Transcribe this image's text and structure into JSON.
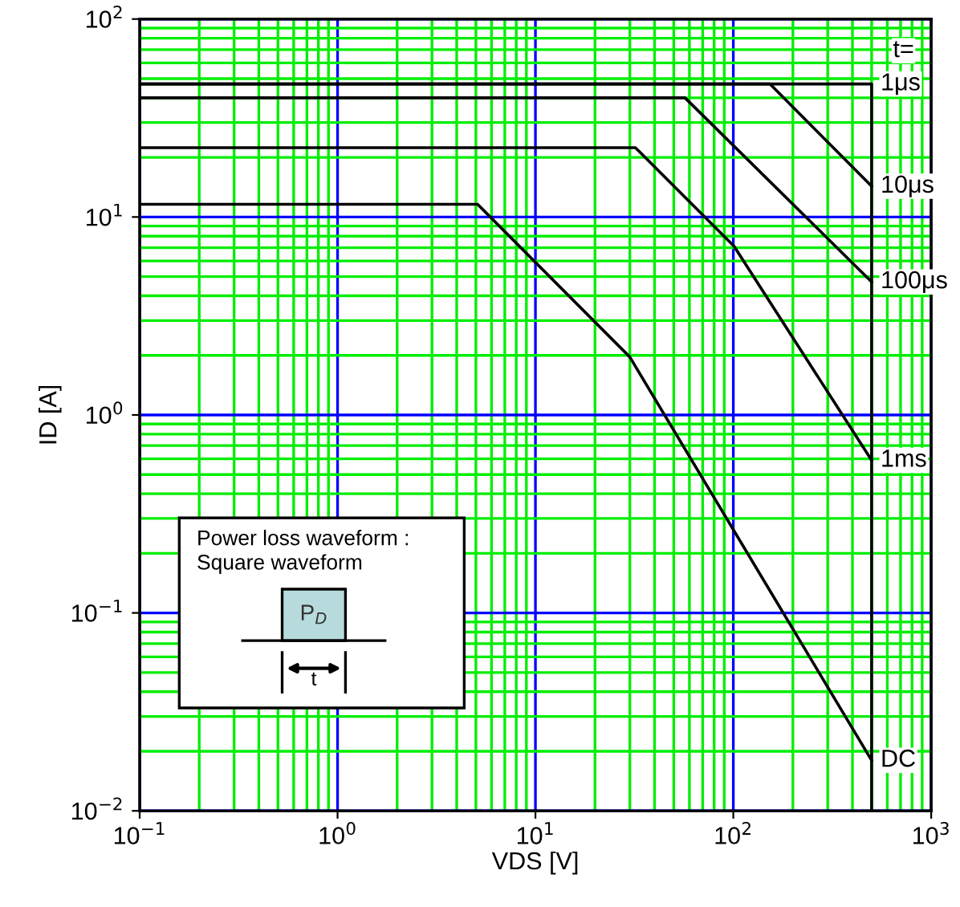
{
  "chart_data": {
    "type": "line",
    "xlabel": "VDS [V]",
    "ylabel": "ID [A]",
    "log": "xy",
    "grid": true,
    "marker": "none",
    "line_style": "solid",
    "xlim": [
      0.1,
      1000
    ],
    "ylim": [
      0.01,
      100
    ],
    "xticks": [
      {
        "value": 0.1,
        "label": "10$^{−1}$"
      },
      {
        "value": 0.2,
        "label": null
      },
      {
        "value": 0.3,
        "label": null
      },
      {
        "value": 0.4,
        "label": null
      },
      {
        "value": 0.5,
        "label": null
      },
      {
        "value": 0.6,
        "label": null
      },
      {
        "value": 0.7,
        "label": null
      },
      {
        "value": 0.8,
        "label": null
      },
      {
        "value": 0.9,
        "label": null
      },
      {
        "value": 1,
        "label": "10$^{0}$"
      },
      {
        "value": 2,
        "label": null
      },
      {
        "value": 3,
        "label": null
      },
      {
        "value": 4,
        "label": null
      },
      {
        "value": 5,
        "label": null
      },
      {
        "value": 6,
        "label": null
      },
      {
        "value": 7,
        "label": null
      },
      {
        "value": 8,
        "label": null
      },
      {
        "value": 9,
        "label": null
      },
      {
        "value": 10,
        "label": "10$^{1}$"
      },
      {
        "value": 20,
        "label": null
      },
      {
        "value": 30,
        "label": null
      },
      {
        "value": 40,
        "label": null
      },
      {
        "value": 50,
        "label": null
      },
      {
        "value": 60,
        "label": null
      },
      {
        "value": 70,
        "label": null
      },
      {
        "value": 80,
        "label": null
      },
      {
        "value": 90,
        "label": null
      },
      {
        "value": 100,
        "label": "10$^{2}$"
      },
      {
        "value": 200,
        "label": null
      },
      {
        "value": 300,
        "label": null
      },
      {
        "value": 400,
        "label": null
      },
      {
        "value": 500,
        "label": null
      },
      {
        "value": 600,
        "label": null
      },
      {
        "value": 700,
        "label": null
      },
      {
        "value": 800,
        "label": null
      },
      {
        "value": 900,
        "label": null
      },
      {
        "value": 1000,
        "label": "10$^{3}$"
      }
    ],
    "yticks": [
      {
        "value": 0.01,
        "label": "10$^{−2}$"
      },
      {
        "value": 0.02,
        "label": null
      },
      {
        "value": 0.03,
        "label": null
      },
      {
        "value": 0.04,
        "label": null
      },
      {
        "value": 0.05,
        "label": null
      },
      {
        "value": 0.06,
        "label": null
      },
      {
        "value": 0.07,
        "label": null
      },
      {
        "value": 0.08,
        "label": null
      },
      {
        "value": 0.09,
        "label": null
      },
      {
        "value": 0.1,
        "label": "10$^{−1}$"
      },
      {
        "value": 0.2,
        "label": null
      },
      {
        "value": 0.3,
        "label": null
      },
      {
        "value": 0.4,
        "label": null
      },
      {
        "value": 0.5,
        "label": null
      },
      {
        "value": 0.6,
        "label": null
      },
      {
        "value": 0.7,
        "label": null
      },
      {
        "value": 0.8,
        "label": null
      },
      {
        "value": 0.9,
        "label": null
      },
      {
        "value": 1,
        "label": "10$^{0}$"
      },
      {
        "value": 2,
        "label": null
      },
      {
        "value": 3,
        "label": null
      },
      {
        "value": 4,
        "label": null
      },
      {
        "value": 5,
        "label": null
      },
      {
        "value": 6,
        "label": null
      },
      {
        "value": 7,
        "label": null
      },
      {
        "value": 8,
        "label": null
      },
      {
        "value": 9,
        "label": null
      },
      {
        "value": 10,
        "label": "10$^{1}$"
      },
      {
        "value": 20,
        "label": null
      },
      {
        "value": 30,
        "label": null
      },
      {
        "value": 40,
        "label": null
      },
      {
        "value": 50,
        "label": null
      },
      {
        "value": 60,
        "label": null
      },
      {
        "value": 70,
        "label": null
      },
      {
        "value": 80,
        "label": null
      },
      {
        "value": 90,
        "label": null
      },
      {
        "value": 100,
        "label": "10$^{2}$"
      }
    ],
    "series": [
      {
        "name": "1μs",
        "color": "#000000",
        "x": [
          0.1,
          500,
          500
        ],
        "values": [
          47,
          47,
          0.01
        ]
      },
      {
        "name": "10μs",
        "color": "#000000",
        "x": [
          0.1,
          153,
          500
        ],
        "values": [
          47,
          47,
          14.3
        ]
      },
      {
        "name": "100μs",
        "color": "#000000",
        "x": [
          0.1,
          57,
          500
        ],
        "values": [
          40,
          40,
          4.7
        ]
      },
      {
        "name": "1ms",
        "color": "#000000",
        "x": [
          0.1,
          32,
          101,
          500
        ],
        "values": [
          22.4,
          22.4,
          7.1,
          0.59
        ]
      },
      {
        "name": "DC",
        "color": "#000000",
        "x": [
          0.1,
          5.1,
          30,
          500
        ],
        "values": [
          11.6,
          11.6,
          1.96,
          0.018
        ]
      }
    ],
    "annotations": [
      "t=",
      "Power loss waveform :\nSquare waveform",
      "P$_{D}$",
      "t"
    ]
  }
}
